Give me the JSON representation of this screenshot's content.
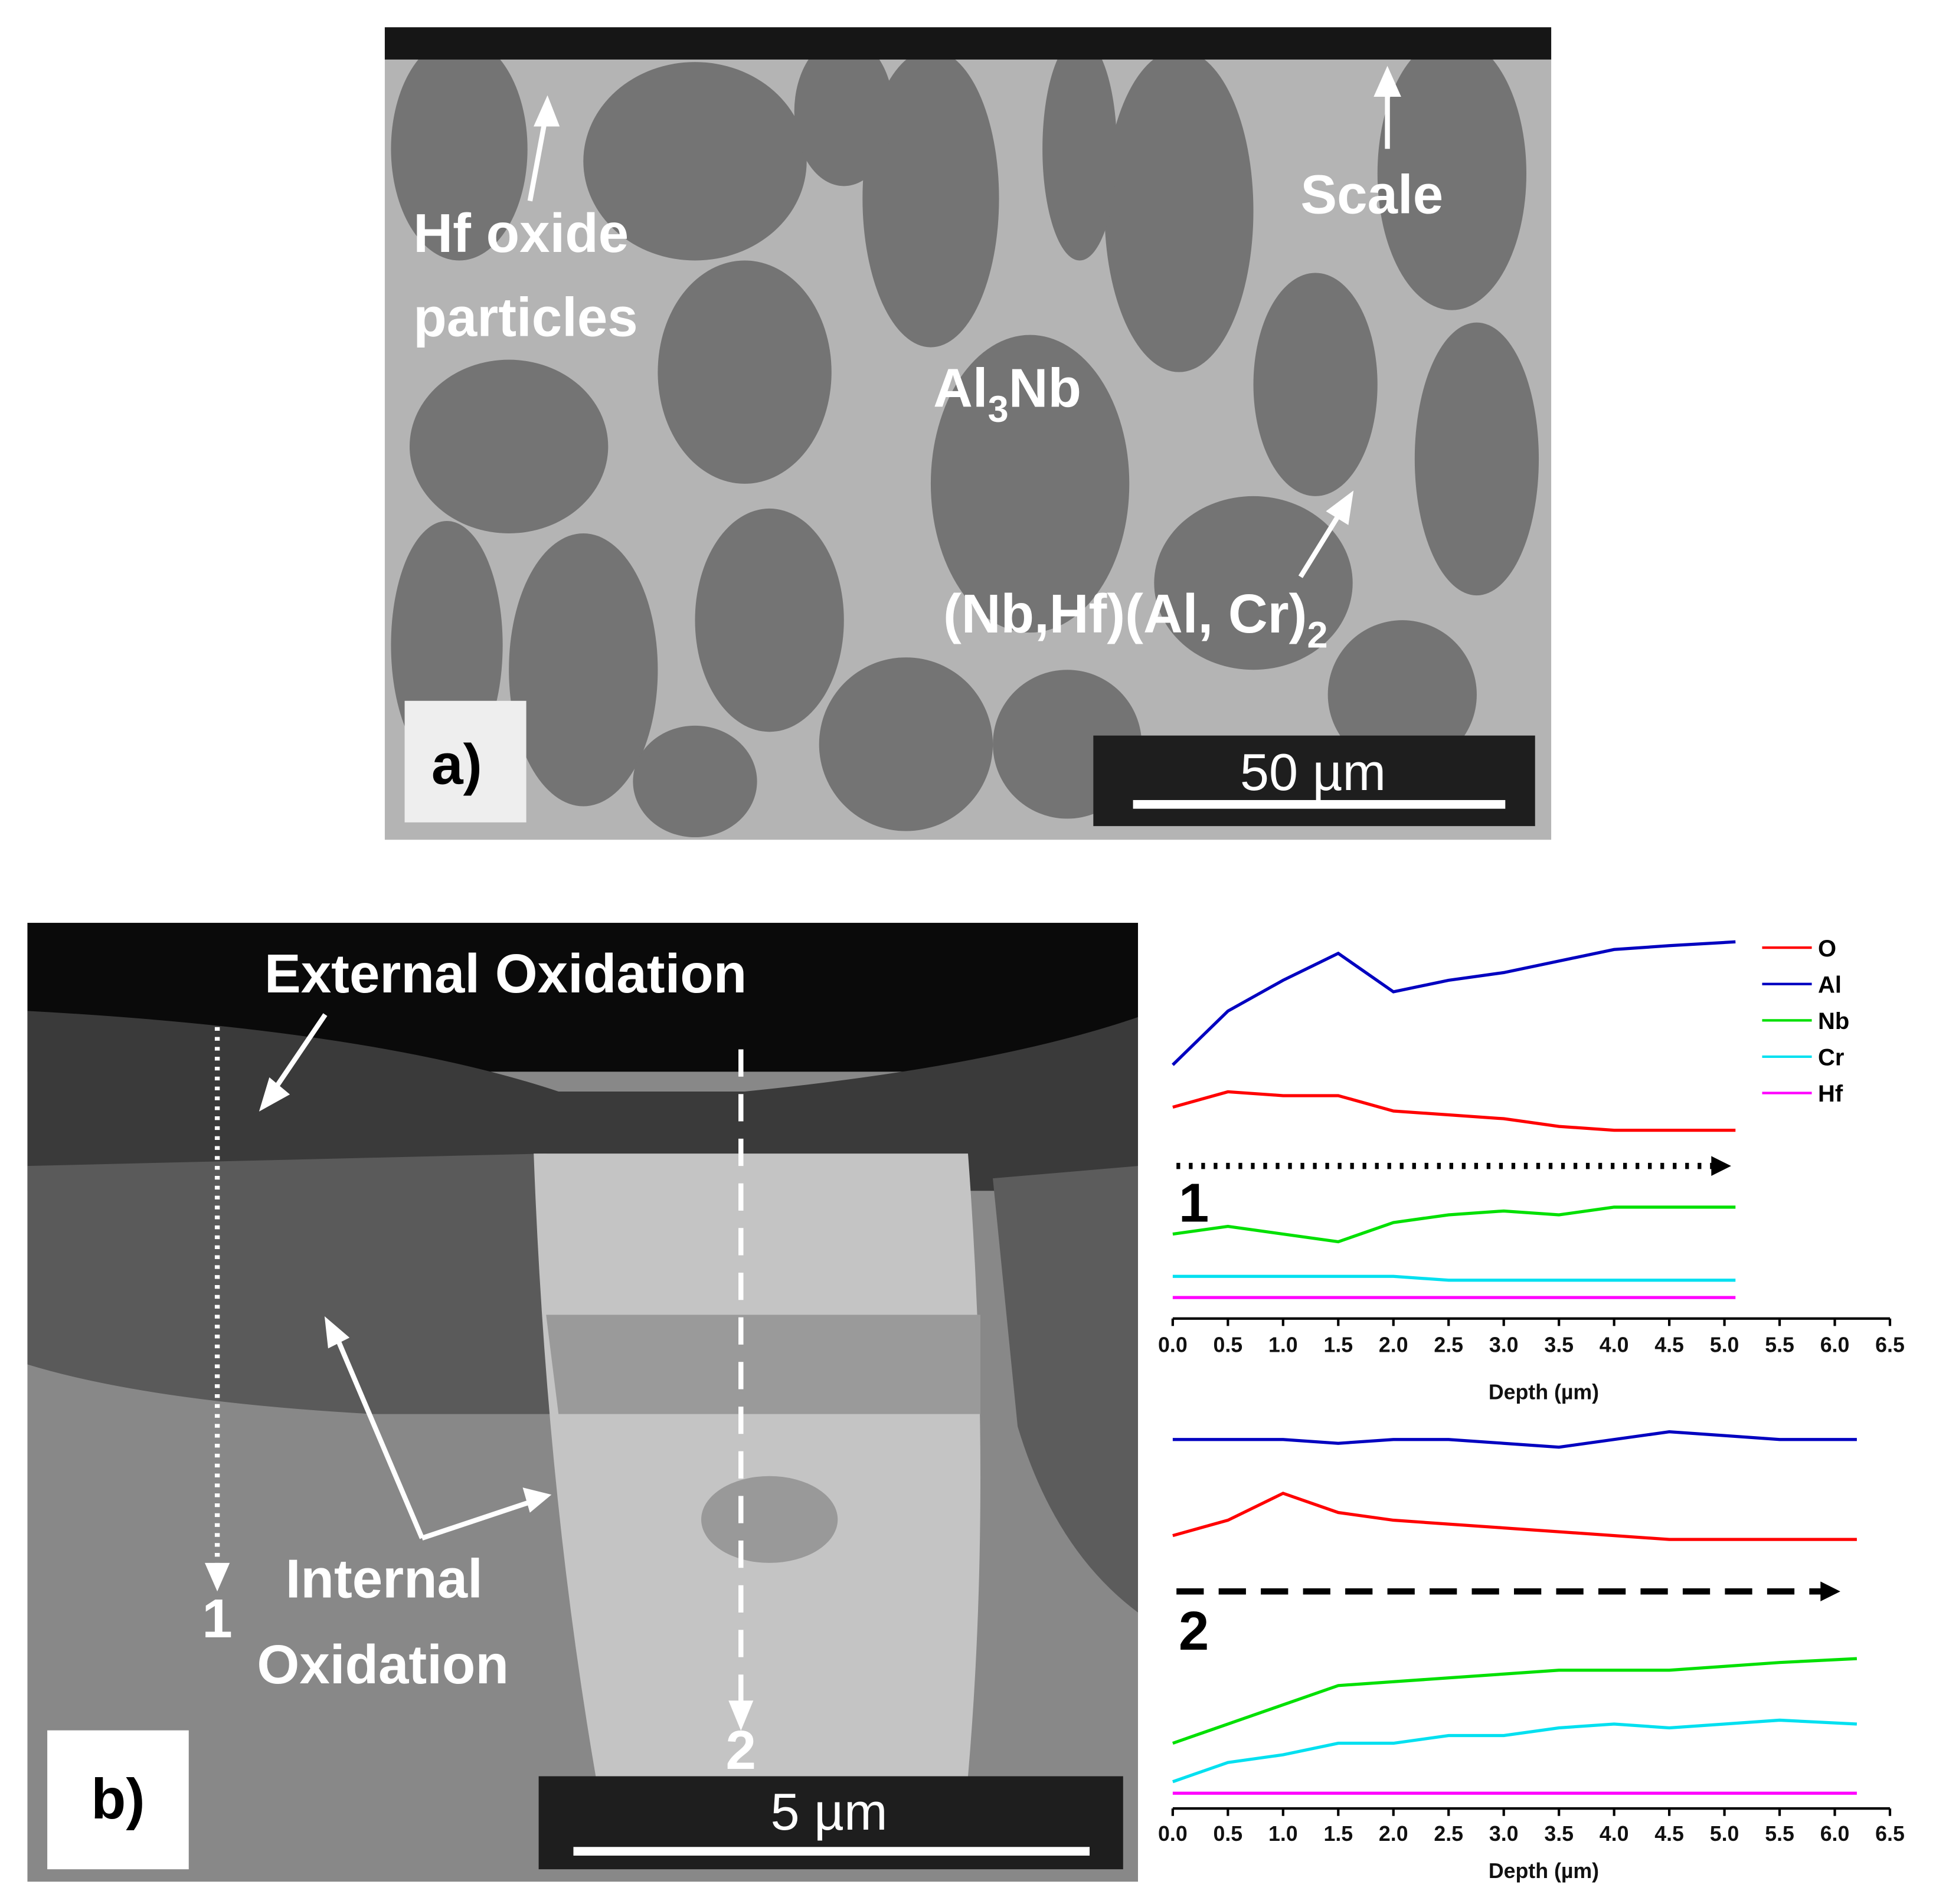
{
  "panel_a": {
    "label": "a)",
    "hf_oxide": [
      "Hf oxide",
      "particles"
    ],
    "scale": "Scale",
    "al3nb": [
      "Al",
      "3",
      "Nb"
    ],
    "laves": [
      "(Nb,Hf)(Al, Cr)",
      "2"
    ],
    "scale_bar": "50 µm"
  },
  "panel_b": {
    "label": "b)",
    "external": "External Oxidation",
    "internal": [
      "Internal",
      "Oxidation"
    ],
    "line_1": "1",
    "line_2": "2",
    "scale_bar": "5 µm"
  },
  "chart_data": [
    {
      "type": "line",
      "x_label": "Depth (µm)",
      "annotation": "1",
      "xlim": [
        0,
        6.5
      ],
      "ylim": [
        0,
        100
      ],
      "xticks": [
        {
          "value": 0,
          "label": "0.0"
        },
        0.5,
        {
          "value": 1,
          "label": "1.0"
        },
        1.5,
        {
          "value": 2,
          "label": "2.0"
        },
        2.5,
        {
          "value": 3,
          "label": "3.0"
        },
        3.5,
        {
          "value": 4,
          "label": "4.0"
        },
        4.5,
        {
          "value": 5,
          "label": "5.0"
        },
        5.5,
        {
          "value": 6,
          "label": "6.0"
        },
        6.5
      ],
      "x": [
        0,
        0.5,
        1,
        1.5,
        2,
        2.5,
        3,
        3.5,
        4,
        4.5,
        5.1
      ],
      "series": [
        {
          "name": "O",
          "color": "#ff0000",
          "values": [
            54,
            58,
            57,
            57,
            53,
            52,
            51,
            49,
            48,
            48,
            48
          ]
        },
        {
          "name": "Al",
          "color": "#0000c0",
          "values": [
            65,
            79,
            87,
            94,
            84,
            87,
            89,
            92,
            95,
            96,
            97
          ]
        },
        {
          "name": "Nb",
          "color": "#00e000",
          "values": [
            21,
            23,
            21,
            19,
            24,
            26,
            27,
            26,
            28,
            28,
            28
          ]
        },
        {
          "name": "Cr",
          "color": "#00e0f0",
          "values": [
            10,
            10,
            10,
            10,
            10,
            9,
            9,
            9,
            9,
            9,
            9
          ]
        },
        {
          "name": "Hf",
          "color": "#ff00ff",
          "values": [
            4.5,
            4.5,
            4.5,
            4.5,
            4.5,
            4.5,
            4.5,
            4.5,
            4.5,
            4.5,
            4.5
          ]
        }
      ]
    },
    {
      "type": "line",
      "x_label": "Depth (µm)",
      "annotation": "2",
      "xlim": [
        0,
        6.5
      ],
      "ylim": [
        0,
        100
      ],
      "xticks": [
        {
          "value": 0,
          "label": "0.0"
        },
        0.5,
        {
          "value": 1,
          "label": "1.0"
        },
        1.5,
        {
          "value": 2,
          "label": "2.0"
        },
        2.5,
        {
          "value": 3,
          "label": "3.0"
        },
        3.5,
        {
          "value": 4,
          "label": "4.0"
        },
        4.5,
        {
          "value": 5,
          "label": "5.0"
        },
        5.5,
        {
          "value": 6,
          "label": "6.0"
        },
        6.5
      ],
      "x": [
        0,
        0.5,
        1,
        1.5,
        2,
        2.5,
        3,
        3.5,
        4,
        4.5,
        5,
        5.5,
        6.2
      ],
      "series": [
        {
          "color": "#0000c0",
          "values": [
            95,
            95,
            95,
            94,
            95,
            95,
            94,
            93,
            95,
            97,
            96,
            95,
            95
          ]
        },
        {
          "color": "#ff0000",
          "values": [
            70,
            74,
            81,
            76,
            74,
            73,
            72,
            71,
            70,
            69,
            69,
            69,
            69
          ]
        },
        {
          "color": "#00e000",
          "values": [
            16,
            21,
            26,
            31,
            32,
            33,
            34,
            35,
            35,
            35,
            36,
            37,
            38
          ]
        },
        {
          "color": "#00e0f0",
          "values": [
            6,
            11,
            13,
            16,
            16,
            18,
            18,
            20,
            21,
            20,
            21,
            22,
            21
          ]
        },
        {
          "color": "#ff00ff",
          "values": [
            3,
            3,
            3,
            3,
            3,
            3,
            3,
            3,
            3,
            3,
            3,
            3,
            3
          ]
        }
      ]
    }
  ]
}
